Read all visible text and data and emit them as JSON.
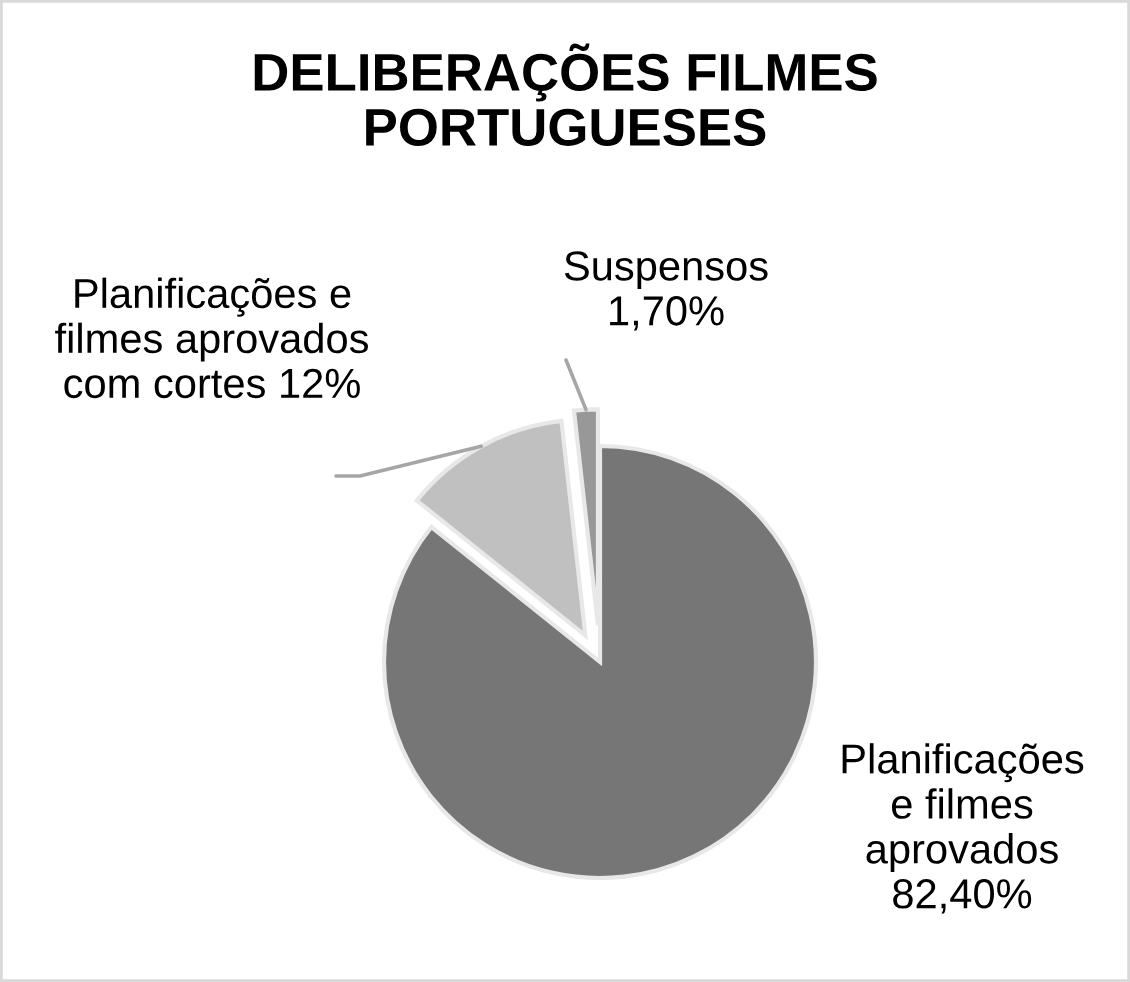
{
  "chart_data": {
    "type": "pie",
    "title": "DELIBERAÇÕES FILMES PORTUGUESES",
    "categories": [
      "Planificações e filmes aprovados",
      "Planificações e filmes aprovados com cortes",
      "Suspensos"
    ],
    "values": [
      82.4,
      12,
      1.7
    ],
    "colors": [
      "#767676",
      "#c0c0c0",
      "#989898"
    ],
    "value_labels": [
      "82,40%",
      "12%",
      "1,70%"
    ]
  }
}
